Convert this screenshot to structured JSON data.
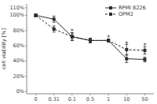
{
  "chart_data": {
    "type": "line",
    "ylabel": "cell viability [%]",
    "categories": [
      "0",
      "0.31",
      "0.1",
      "0.5",
      "1",
      "10",
      "50"
    ],
    "series": [
      {
        "name": "RPMI 8226",
        "color": "#2a2a2a",
        "marker": "square",
        "line_style": "solid",
        "values": [
          100,
          95,
          72,
          67,
          67,
          43,
          42
        ],
        "errors": [
          1.5,
          4,
          5,
          3,
          2,
          5,
          3
        ]
      },
      {
        "name": "OPM2",
        "color": "#2a2a2a",
        "marker": "square",
        "line_style": "dashed",
        "values": [
          100,
          82,
          72,
          67,
          67,
          55,
          54
        ],
        "errors": [
          1.5,
          4,
          5,
          3,
          2,
          7,
          5
        ]
      }
    ],
    "ylim": [
      -3,
      115
    ],
    "yticks": [
      {
        "value": 0,
        "label": "0%"
      },
      {
        "value": 20,
        "label": "20%"
      },
      {
        "value": 40,
        "label": "40%"
      },
      {
        "value": 60,
        "label": "60%"
      },
      {
        "value": 80,
        "label": "80%"
      },
      {
        "value": 100,
        "label": "100%"
      },
      {
        "value": 110,
        "label": "110%"
      }
    ],
    "annotations": [
      {
        "text": "*",
        "category": "0.1",
        "y": 79
      },
      {
        "text": "*",
        "category": "1",
        "y": 71
      },
      {
        "text": "*",
        "category": "10",
        "y": 62
      },
      {
        "text": "*",
        "category": "50",
        "y": 60
      }
    ],
    "legend": "upper right",
    "grid": false
  }
}
